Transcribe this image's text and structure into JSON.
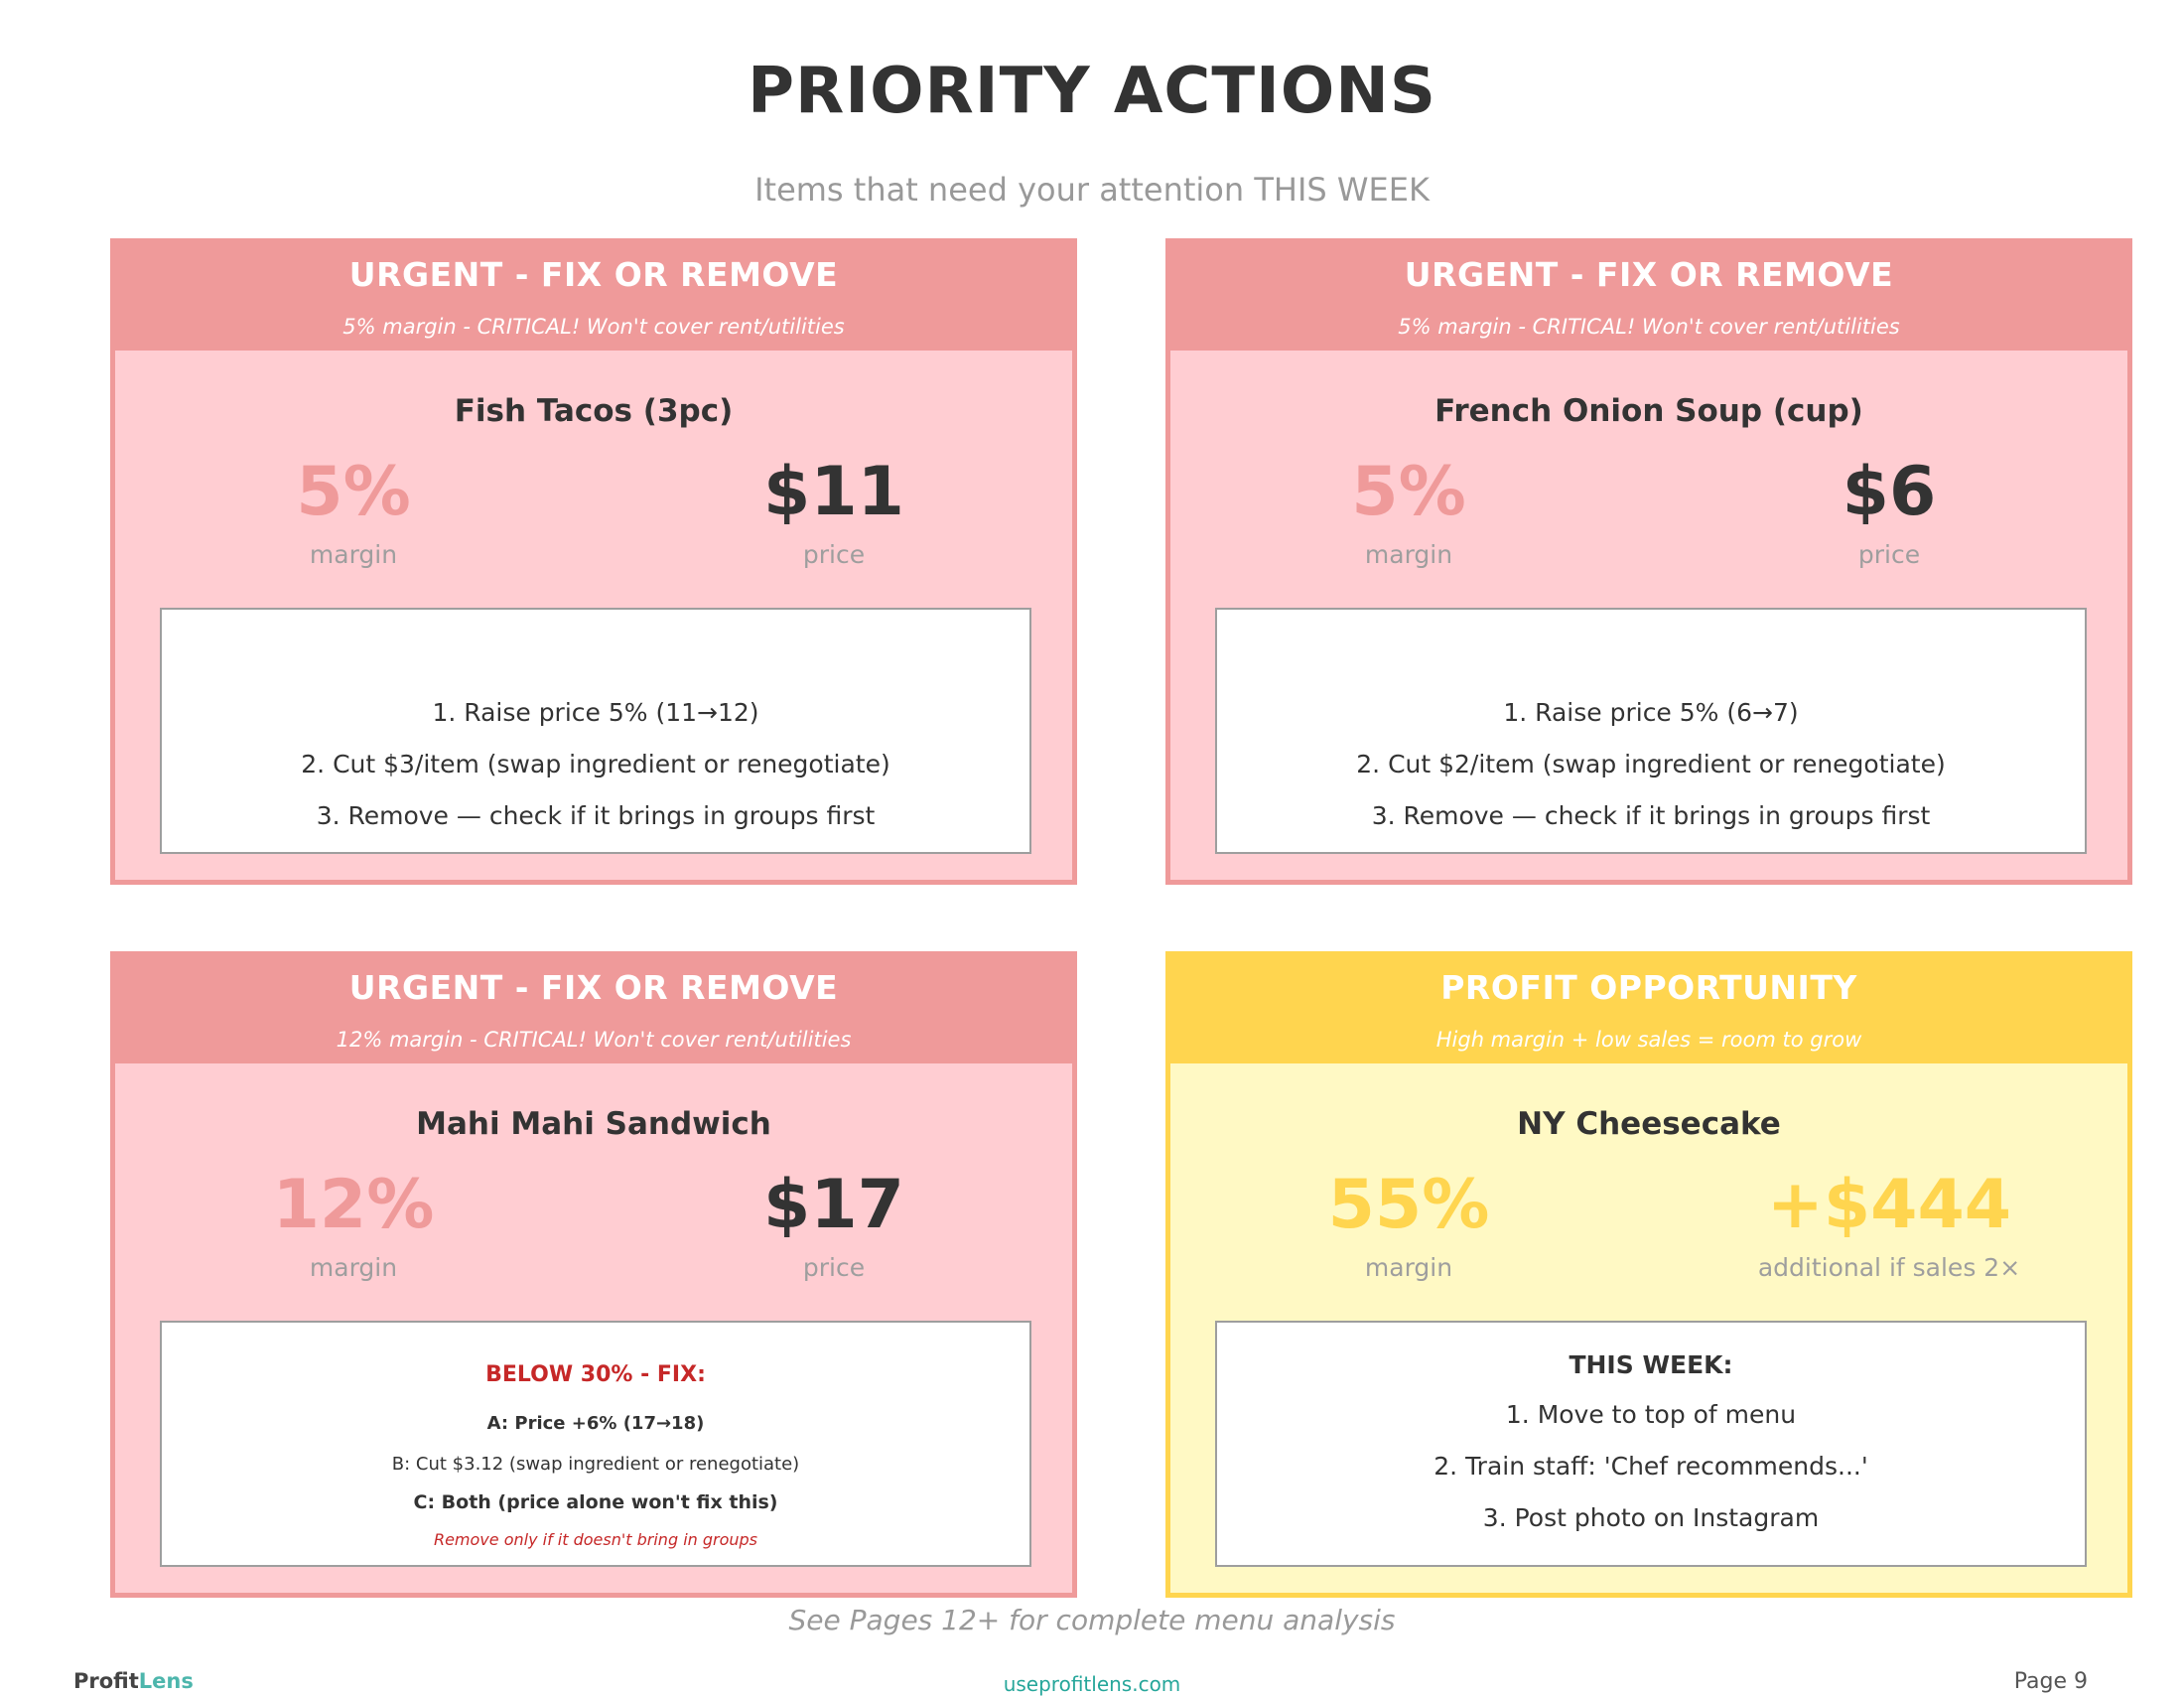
{
  "page": {
    "title": "PRIORITY ACTIONS",
    "subtitle": "Items that need your attention THIS WEEK",
    "footer_note": "See Pages 12+ for complete menu analysis",
    "logo_part1": "Profit",
    "logo_part2": "Lens",
    "site": "useprofitlens.com",
    "page_number": "Page 9"
  },
  "cards": [
    {
      "header": "URGENT - FIX OR REMOVE",
      "subheader": "5% margin - CRITICAL! Won't cover rent/utilities",
      "item": "Fish Tacos (3pc)",
      "margin": "5%",
      "margin_label": "margin",
      "price": "$11",
      "price_label": "price",
      "plan": [
        "1. Raise price 5% (11→12)",
        "2. Cut $3/item (swap ingredient or renegotiate)",
        "3. Remove — check if it brings in groups first"
      ]
    },
    {
      "header": "URGENT - FIX OR REMOVE",
      "subheader": "5% margin - CRITICAL! Won't cover rent/utilities",
      "item": "French Onion Soup (cup)",
      "margin": "5%",
      "margin_label": "margin",
      "price": "$6",
      "price_label": "price",
      "plan": [
        "1. Raise price 5% (6→7)",
        "2. Cut $2/item (swap ingredient or renegotiate)",
        "3. Remove — check if it brings in groups first"
      ]
    },
    {
      "header": "URGENT - FIX OR REMOVE",
      "subheader": "12% margin - CRITICAL! Won't cover rent/utilities",
      "item": "Mahi Mahi Sandwich",
      "margin": "12%",
      "margin_label": "margin",
      "price": "$17",
      "price_label": "price",
      "fix": {
        "title": "BELOW 30% - FIX:",
        "a": "A: Price +6% (17→18)",
        "b": "B: Cut $3.12 (swap ingredient or renegotiate)",
        "c": "C: Both (price alone won't fix this)",
        "note": "Remove only if it doesn't bring in groups"
      }
    },
    {
      "header": "PROFIT OPPORTUNITY",
      "subheader": "High margin + low sales = room to grow",
      "item": "NY Cheesecake",
      "margin": "55%",
      "margin_label": "margin",
      "price": "+$444",
      "price_label": "additional if sales 2×",
      "week_title": "THIS WEEK:",
      "plan": [
        "1. Move to top of menu",
        "2. Train staff: 'Chef recommends...'",
        "3. Post photo on Instagram"
      ]
    }
  ],
  "colors": {
    "urgent_header": "#ef9a9a",
    "urgent_body": "#ffcdd2",
    "opportunity_header": "#ffd54f",
    "opportunity_body": "#fff9c4",
    "alert_text": "#c62828",
    "brand_teal": "#26a69a"
  }
}
